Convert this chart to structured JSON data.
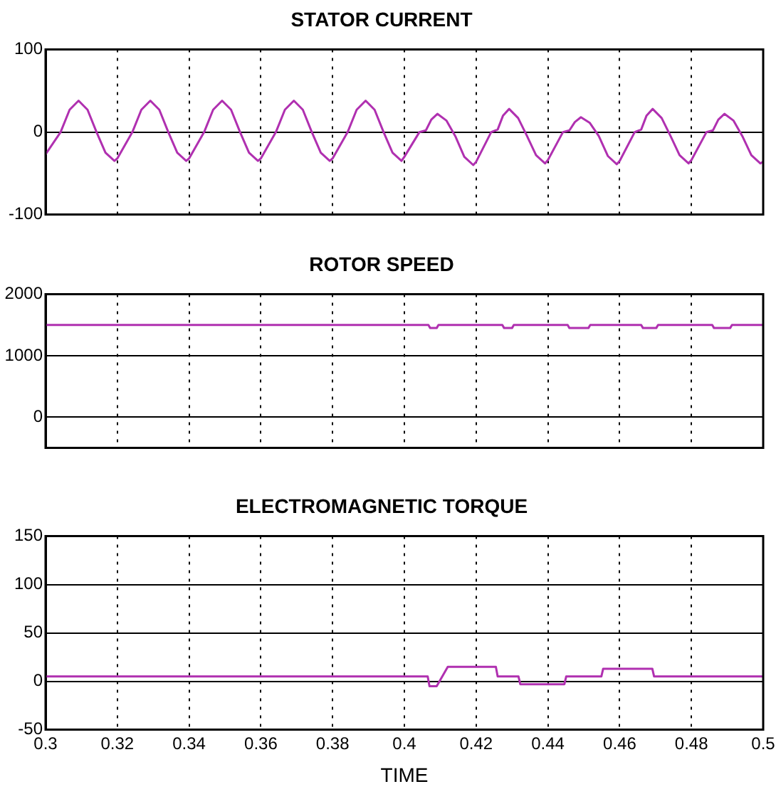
{
  "chart_data": [
    {
      "type": "line",
      "title": "STATOR CURRENT",
      "xlim": [
        0.3,
        0.5
      ],
      "xticks": [
        0.3,
        0.32,
        0.34,
        0.36,
        0.38,
        0.4,
        0.42,
        0.44,
        0.46,
        0.48,
        0.5
      ],
      "ylim": [
        -100,
        100
      ],
      "yticks": [
        -100,
        0,
        100
      ],
      "grid": true,
      "tick_labels": "y",
      "line_style": "solid",
      "series": [
        {
          "color": "#b030b0",
          "x": [
            0.3,
            0.3042,
            0.3067,
            0.3092,
            0.3117,
            0.3142,
            0.3167,
            0.3192,
            0.32,
            0.3242,
            0.3267,
            0.3292,
            0.3317,
            0.3342,
            0.3367,
            0.3392,
            0.34,
            0.3442,
            0.3467,
            0.3492,
            0.3517,
            0.3542,
            0.3567,
            0.3592,
            0.36,
            0.3642,
            0.3667,
            0.3692,
            0.3717,
            0.3742,
            0.3767,
            0.3792,
            0.38,
            0.3842,
            0.3867,
            0.3892,
            0.3917,
            0.3942,
            0.3967,
            0.3992,
            0.4,
            0.4042,
            0.406,
            0.4075,
            0.4092,
            0.4117,
            0.4142,
            0.4167,
            0.4192,
            0.42,
            0.4242,
            0.426,
            0.4275,
            0.4292,
            0.4317,
            0.4342,
            0.4367,
            0.4392,
            0.44,
            0.4442,
            0.446,
            0.4475,
            0.4492,
            0.4517,
            0.4542,
            0.4567,
            0.4592,
            0.46,
            0.4642,
            0.466,
            0.4675,
            0.4692,
            0.4717,
            0.4742,
            0.4767,
            0.4792,
            0.48,
            0.4842,
            0.486,
            0.4875,
            0.4892,
            0.4917,
            0.4942,
            0.4967,
            0.4992,
            0.5
          ],
          "values": [
            -27,
            0,
            27,
            38,
            27,
            0,
            -25,
            -35,
            -32,
            0,
            27,
            38,
            27,
            0,
            -25,
            -35,
            -32,
            0,
            27,
            38,
            27,
            0,
            -25,
            -35,
            -32,
            0,
            27,
            38,
            27,
            0,
            -25,
            -35,
            -32,
            0,
            27,
            38,
            27,
            0,
            -25,
            -35,
            -30,
            0,
            2,
            15,
            22,
            14,
            -5,
            -30,
            -40,
            -36,
            0,
            3,
            20,
            28,
            17,
            -5,
            -28,
            -38,
            -34,
            0,
            2,
            12,
            18,
            11,
            -5,
            -29,
            -39,
            -35,
            0,
            3,
            20,
            28,
            17,
            -5,
            -28,
            -38,
            -34,
            0,
            2,
            15,
            22,
            14,
            -5,
            -28,
            -38,
            -36
          ]
        }
      ]
    },
    {
      "type": "line",
      "title": "ROTOR SPEED",
      "xlim": [
        0.3,
        0.5
      ],
      "xticks": [
        0.3,
        0.32,
        0.34,
        0.36,
        0.38,
        0.4,
        0.42,
        0.44,
        0.46,
        0.48,
        0.5
      ],
      "ylim": [
        -500,
        2000
      ],
      "yticks": [
        0,
        1000,
        2000
      ],
      "grid": true,
      "tick_labels": "y",
      "line_style": "solid",
      "series": [
        {
          "color": "#b030b0",
          "x": [
            0.3,
            0.4067,
            0.4072,
            0.409,
            0.4095,
            0.4273,
            0.4278,
            0.43,
            0.4305,
            0.4455,
            0.446,
            0.4513,
            0.4518,
            0.466,
            0.4665,
            0.4702,
            0.4707,
            0.4858,
            0.4863,
            0.4908,
            0.4913,
            0.5
          ],
          "values": [
            1500,
            1500,
            1450,
            1450,
            1500,
            1500,
            1450,
            1450,
            1500,
            1500,
            1450,
            1450,
            1500,
            1500,
            1450,
            1450,
            1500,
            1500,
            1450,
            1450,
            1500,
            1500
          ]
        }
      ]
    },
    {
      "type": "line",
      "title": "ELECTROMAGNETIC TORQUE",
      "xlabel": "TIME",
      "xlim": [
        0.3,
        0.5
      ],
      "xticks": [
        0.3,
        0.32,
        0.34,
        0.36,
        0.38,
        0.4,
        0.42,
        0.44,
        0.46,
        0.48,
        0.5
      ],
      "ylim": [
        -50,
        150
      ],
      "yticks": [
        -50,
        0,
        50,
        100,
        150
      ],
      "grid": true,
      "line_style": "solid",
      "series": [
        {
          "color": "#b030b0",
          "x": [
            0.3,
            0.4065,
            0.407,
            0.409,
            0.4121,
            0.4255,
            0.426,
            0.4318,
            0.4323,
            0.4446,
            0.4451,
            0.4549,
            0.4554,
            0.4691,
            0.4696,
            0.5
          ],
          "values": [
            5,
            5,
            -5,
            -5,
            15,
            15,
            5,
            5,
            -3,
            -3,
            5,
            5,
            13,
            13,
            5,
            5
          ]
        }
      ]
    }
  ]
}
